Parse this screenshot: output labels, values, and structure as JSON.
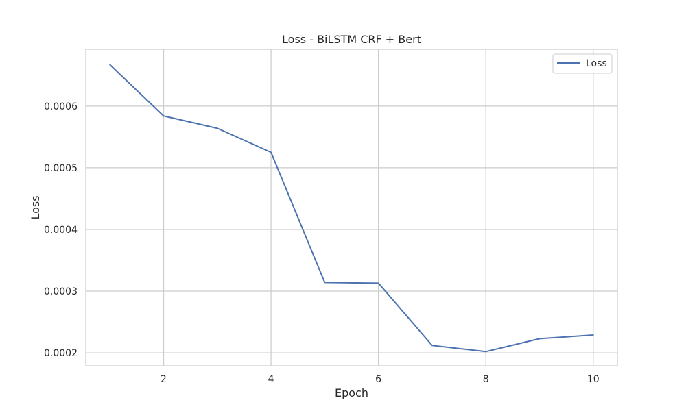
{
  "chart_data": {
    "type": "line",
    "title": "Loss - BiLSTM CRF + Bert",
    "xlabel": "Epoch",
    "ylabel": "Loss",
    "xlim": [
      0.55,
      10.45
    ],
    "ylim": [
      0.000179,
      0.000692
    ],
    "x_ticks": [
      2,
      4,
      6,
      8,
      10
    ],
    "x_tick_labels": [
      "2",
      "4",
      "6",
      "8",
      "10"
    ],
    "y_ticks": [
      0.0002,
      0.0003,
      0.0004,
      0.0005,
      0.0006
    ],
    "y_tick_labels": [
      "0.0002",
      "0.0003",
      "0.0004",
      "0.0005",
      "0.0006"
    ],
    "grid": true,
    "legend": {
      "position": "top-right",
      "entries": [
        "Loss"
      ]
    },
    "series": [
      {
        "name": "Loss",
        "color": "#4c72b0",
        "x": [
          1,
          2,
          3,
          4,
          5,
          6,
          7,
          8,
          9,
          10
        ],
        "values": [
          0.000667,
          0.000584,
          0.000564,
          0.000525,
          0.000314,
          0.000313,
          0.000212,
          0.000202,
          0.000223,
          0.000229
        ]
      }
    ]
  }
}
